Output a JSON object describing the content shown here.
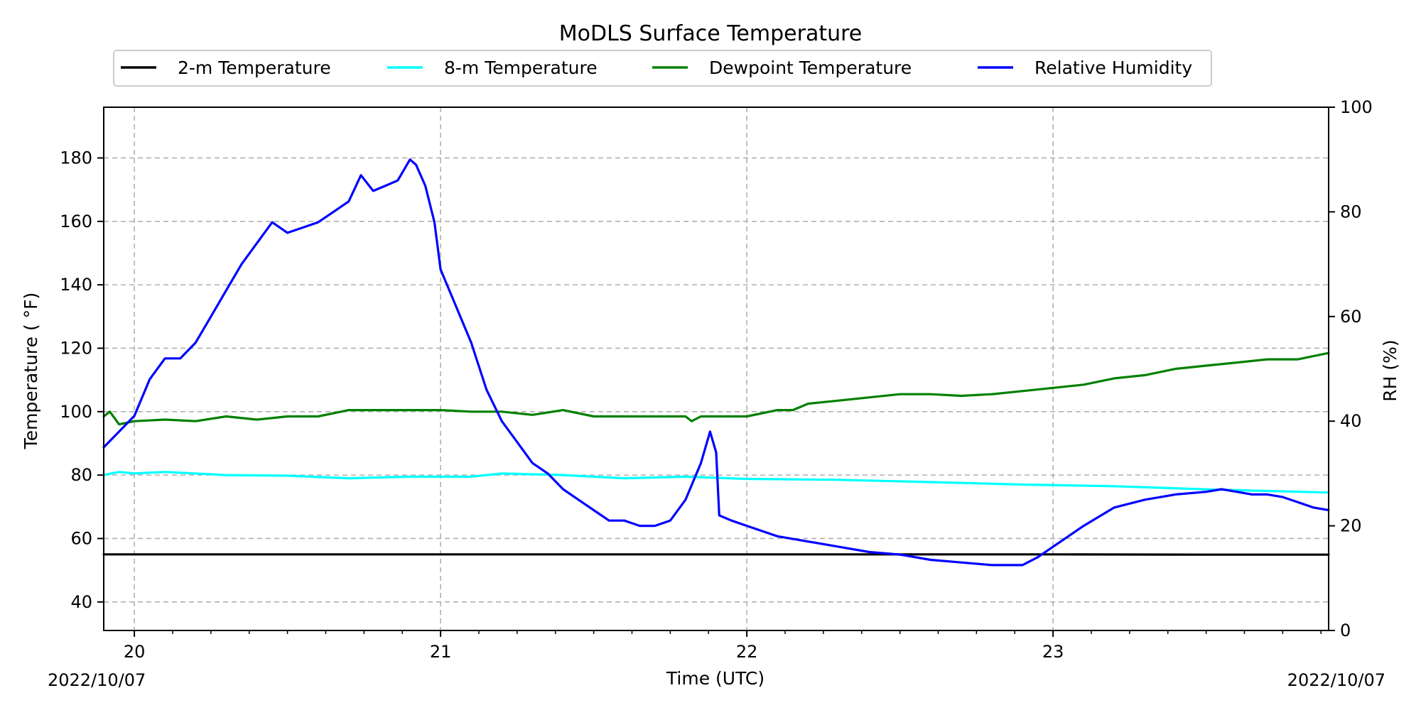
{
  "chart_data": {
    "type": "line",
    "title": "MoDLS Surface Temperature",
    "xlabel": "Time (UTC)",
    "ylabel": "Temperature ($^\\circ$F)",
    "ylabel_display": "Temperature ( °F)",
    "ylabel_right": "RH (%)",
    "x_units": "day of month (UTC)",
    "xlim": [
      19.9,
      23.9
    ],
    "ylim": [
      31,
      196
    ],
    "ylim_right": [
      0,
      100
    ],
    "x_ticks": [
      20,
      21,
      22,
      23
    ],
    "x_tick_labels": [
      "20",
      "21",
      "22",
      "23"
    ],
    "x_minor_step": 0.125,
    "y_ticks": [
      40,
      60,
      80,
      100,
      120,
      140,
      160,
      180
    ],
    "y_ticks_right": [
      0,
      20,
      40,
      60,
      80,
      100
    ],
    "date_left": "2022/10/07",
    "date_right": "2022/10/07",
    "grid": true,
    "legend_position": "top, above plot",
    "series": [
      {
        "name": "2-m Temperature",
        "color": "#000000",
        "axis": "left",
        "x": [
          19.9,
          20.5,
          21.0,
          21.5,
          22.0,
          22.5,
          23.0,
          23.5,
          23.9
        ],
        "y": [
          55.0,
          55.0,
          55.0,
          55.0,
          55.0,
          55.0,
          55.0,
          54.9,
          54.9
        ]
      },
      {
        "name": "8-m Temperature",
        "color": "#00ffff",
        "axis": "left",
        "x": [
          19.9,
          19.95,
          20.0,
          20.1,
          20.3,
          20.5,
          20.7,
          20.9,
          21.1,
          21.2,
          21.4,
          21.6,
          21.8,
          22.0,
          22.3,
          22.6,
          22.9,
          23.2,
          23.5,
          23.7,
          23.9
        ],
        "y": [
          80.0,
          81.0,
          80.5,
          81.0,
          80.0,
          79.8,
          79.0,
          79.5,
          79.5,
          80.5,
          80.0,
          79.0,
          79.5,
          78.8,
          78.5,
          77.8,
          77.0,
          76.5,
          75.5,
          75.0,
          74.5
        ]
      },
      {
        "name": "Dewpoint Temperature",
        "color": "#008000",
        "axis": "left",
        "x": [
          19.9,
          19.92,
          19.95,
          20.0,
          20.1,
          20.2,
          20.3,
          20.4,
          20.5,
          20.6,
          20.7,
          20.9,
          21.0,
          21.1,
          21.2,
          21.3,
          21.4,
          21.5,
          21.6,
          21.8,
          21.82,
          21.85,
          21.9,
          22.0,
          22.05,
          22.1,
          22.15,
          22.2,
          22.3,
          22.4,
          22.5,
          22.6,
          22.7,
          22.8,
          22.9,
          23.0,
          23.1,
          23.2,
          23.3,
          23.4,
          23.5,
          23.6,
          23.7,
          23.8,
          23.85,
          23.9
        ],
        "y": [
          98.5,
          100.0,
          96.0,
          97.0,
          97.5,
          97.0,
          98.5,
          97.5,
          98.5,
          98.5,
          100.5,
          100.5,
          100.5,
          100.0,
          100.0,
          99.0,
          100.5,
          98.5,
          98.5,
          98.5,
          97.0,
          98.5,
          98.5,
          98.5,
          99.5,
          100.5,
          100.5,
          102.5,
          103.5,
          104.5,
          105.5,
          105.5,
          105.0,
          105.5,
          106.5,
          107.5,
          108.5,
          110.5,
          111.5,
          113.5,
          114.5,
          115.5,
          116.5,
          116.5,
          117.5,
          118.5
        ]
      },
      {
        "name": "Relative Humidity",
        "color": "#0000ff",
        "axis": "right",
        "x": [
          19.9,
          19.95,
          20.0,
          20.05,
          20.1,
          20.15,
          20.2,
          20.25,
          20.3,
          20.35,
          20.4,
          20.45,
          20.5,
          20.55,
          20.6,
          20.65,
          20.7,
          20.74,
          20.78,
          20.82,
          20.86,
          20.9,
          20.92,
          20.95,
          20.98,
          21.0,
          21.05,
          21.1,
          21.15,
          21.2,
          21.25,
          21.3,
          21.35,
          21.4,
          21.45,
          21.5,
          21.55,
          21.6,
          21.65,
          21.7,
          21.75,
          21.8,
          21.85,
          21.88,
          21.9,
          21.91,
          21.95,
          22.0,
          22.1,
          22.2,
          22.3,
          22.4,
          22.5,
          22.6,
          22.7,
          22.8,
          22.85,
          22.9,
          22.95,
          23.0,
          23.05,
          23.1,
          23.2,
          23.3,
          23.4,
          23.5,
          23.55,
          23.6,
          23.65,
          23.7,
          23.75,
          23.8,
          23.85,
          23.9
        ],
        "y": [
          35,
          38,
          41,
          48,
          52,
          52,
          55,
          60,
          65,
          70,
          74,
          78,
          76,
          77,
          78,
          80,
          82,
          87,
          84,
          85,
          86,
          90,
          89,
          85,
          78,
          69,
          62,
          55,
          46,
          40,
          36,
          32,
          30,
          27,
          25,
          23,
          21,
          21,
          20,
          20,
          21,
          25,
          32,
          38,
          34,
          22,
          21,
          20,
          18,
          17,
          16,
          15,
          14.5,
          13.5,
          13,
          12.5,
          12.5,
          12.5,
          14,
          16,
          18,
          20,
          23.5,
          25,
          26,
          26.5,
          27,
          26.5,
          26,
          26,
          25.5,
          24.5,
          23.5,
          23
        ]
      }
    ]
  }
}
